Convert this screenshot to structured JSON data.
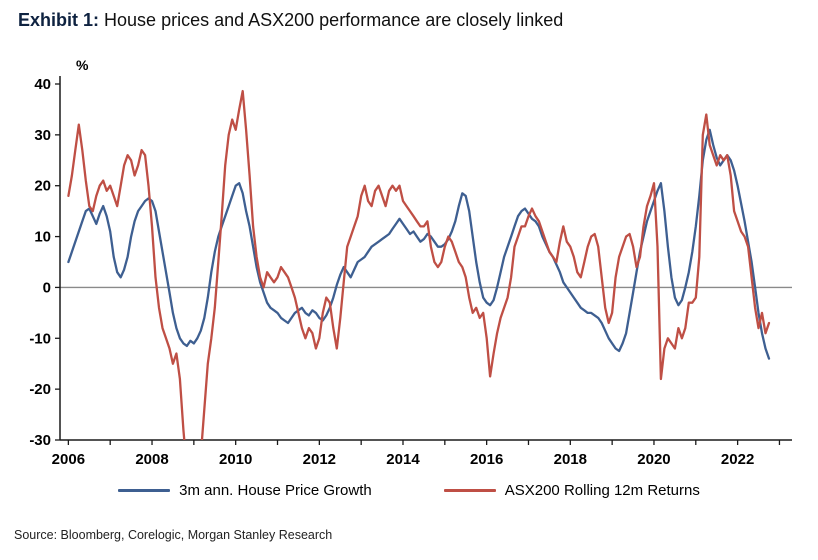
{
  "title": {
    "exhibit": "Exhibit 1:",
    "text": "House prices and ASX200 performance are closely linked"
  },
  "source": "Source: Bloomberg, Corelogic, Morgan Stanley Research",
  "colors": {
    "house_price_line": "#3e5f91",
    "asx200_line": "#bf4f45",
    "axis": "#1a1a1a",
    "zero_line": "#8a8a8a"
  },
  "chart_data": {
    "type": "line",
    "title": "Exhibit 1: House prices and ASX200 performance are closely linked",
    "xlabel": "",
    "ylabel": "%",
    "ylim": [
      -30,
      40
    ],
    "y_ticks": [
      40,
      30,
      20,
      10,
      0,
      -10,
      -20,
      -30
    ],
    "x_range": [
      2005.8,
      2023.3
    ],
    "x_tick_labels": [
      2006,
      2008,
      2010,
      2012,
      2014,
      2016,
      2018,
      2020,
      2022
    ],
    "grid": false,
    "zero_line": true,
    "legend_position": "bottom",
    "series": [
      {
        "name": "3m ann. House Price Growth",
        "color": "#3e5f91",
        "data_name": "house-price-series-line",
        "x_start": 2006.0,
        "step_months": 1,
        "values": [
          5,
          7,
          9,
          11,
          13,
          15,
          15.5,
          14,
          12.5,
          14.5,
          16,
          14,
          11,
          6,
          3,
          2,
          3.5,
          6,
          10,
          13,
          15,
          16,
          17,
          17.5,
          17,
          15,
          11,
          7,
          3,
          -1,
          -5,
          -8,
          -10,
          -11,
          -11.5,
          -10.5,
          -11,
          -10,
          -8.5,
          -6,
          -2,
          3,
          7,
          10,
          12,
          14,
          16,
          18,
          20,
          20.5,
          18.5,
          15,
          12,
          8,
          4,
          1,
          -1,
          -3,
          -4,
          -4.5,
          -5,
          -6,
          -6.5,
          -7,
          -6,
          -5,
          -4.5,
          -4,
          -5,
          -5.5,
          -4.5,
          -5,
          -6,
          -6.5,
          -5.5,
          -4,
          -2,
          0.5,
          2.5,
          4,
          3,
          2,
          3.5,
          5,
          5.5,
          6,
          7,
          8,
          8.5,
          9,
          9.5,
          10,
          10.5,
          11.5,
          12.5,
          13.5,
          12.5,
          11.5,
          10.5,
          11,
          10,
          9,
          9.5,
          10.5,
          10,
          9,
          8,
          8,
          8.5,
          9.5,
          11,
          13,
          16,
          18.5,
          18,
          15,
          10,
          5,
          1,
          -2,
          -3,
          -3.5,
          -2.5,
          0,
          3,
          6,
          8,
          10,
          12,
          14,
          15,
          15.5,
          14.5,
          13.5,
          13,
          12,
          10,
          8.5,
          7,
          6,
          4.5,
          3,
          1,
          0,
          -1,
          -2,
          -3,
          -4,
          -4.5,
          -5,
          -5,
          -5.5,
          -6,
          -7,
          -8.5,
          -10,
          -11,
          -12,
          -12.5,
          -11,
          -9,
          -5,
          -1,
          3,
          7,
          10,
          13,
          15,
          17,
          19,
          20.5,
          15,
          8,
          2,
          -2,
          -3.5,
          -2.5,
          0,
          3,
          7,
          12,
          18,
          25,
          29,
          31,
          28,
          25.5,
          24,
          25,
          26,
          25,
          23,
          20,
          16.5,
          13,
          9,
          5,
          0,
          -5,
          -9,
          -12,
          -14
        ]
      },
      {
        "name": "ASX200 Rolling 12m Returns",
        "color": "#bf4f45",
        "data_name": "asx200-series-line",
        "x_start": 2006.0,
        "step_months": 1,
        "values": [
          18,
          22,
          27,
          32,
          27,
          21,
          16,
          15,
          18,
          20,
          21,
          19,
          20,
          18,
          16,
          20,
          24,
          26,
          25,
          22,
          24,
          27,
          26,
          20,
          12,
          2,
          -4,
          -8,
          -10,
          -12,
          -15,
          -13,
          -18,
          -28,
          -36,
          -40,
          -38,
          -42,
          -33,
          -24,
          -15,
          -10,
          -4,
          5,
          14,
          24,
          30,
          33,
          31,
          35,
          38.6,
          31,
          22,
          12,
          6,
          2,
          0,
          3,
          2,
          1,
          2,
          4,
          3,
          2,
          0,
          -2,
          -5,
          -8,
          -10,
          -8,
          -9,
          -12,
          -10,
          -5,
          -2,
          -3,
          -8,
          -12,
          -6,
          1,
          8,
          10,
          12,
          14,
          18,
          20,
          17,
          16,
          19,
          20,
          18,
          16,
          19,
          20,
          19,
          20,
          17,
          16,
          15,
          14,
          13,
          12,
          12,
          13,
          8,
          5,
          4,
          5,
          8,
          10,
          9,
          7,
          5,
          4,
          2,
          -2,
          -5,
          -4,
          -6,
          -5,
          -10,
          -17.5,
          -13,
          -9,
          -6,
          -4,
          -2,
          2,
          8,
          10,
          12,
          12,
          14,
          15.5,
          14,
          13,
          11,
          9,
          7,
          6,
          5,
          9,
          12,
          9,
          8,
          6,
          3,
          2,
          5,
          8,
          10,
          10.5,
          8,
          2,
          -4,
          -7,
          -5,
          2,
          6,
          8,
          10,
          10.5,
          8,
          4,
          6,
          12,
          16,
          18,
          20.5,
          8,
          -18,
          -12,
          -10,
          -11,
          -12,
          -8,
          -10,
          -8,
          -3,
          -3,
          -2,
          6,
          30,
          34,
          28,
          26,
          24,
          26,
          25,
          26,
          22,
          15,
          13,
          11,
          10,
          8,
          2,
          -4,
          -8,
          -5,
          -9,
          -7
        ]
      }
    ]
  }
}
